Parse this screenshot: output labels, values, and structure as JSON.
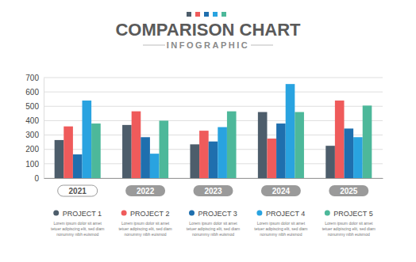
{
  "chart_data": {
    "type": "bar",
    "title": "COMPARISON CHART",
    "subtitle": "INFOGRAPHIC",
    "categories": [
      "2021",
      "2022",
      "2023",
      "2024",
      "2025"
    ],
    "series": [
      {
        "name": "PROJECT 1",
        "color": "#4d5d6b",
        "values": [
          265,
          370,
          235,
          460,
          225
        ],
        "description": [
          "Lorem ipsum dolor sit amet",
          "tetuer adipiscing elit, sed diam",
          "nonummy nibh euismod"
        ]
      },
      {
        "name": "PROJECT 2",
        "color": "#ef5b5b",
        "values": [
          360,
          465,
          330,
          275,
          540
        ],
        "description": [
          "Lorem ipsum dolor sit amet",
          "tetuer adipiscing elit, sed diam",
          "nonummy nibh euismod"
        ]
      },
      {
        "name": "PROJECT 3",
        "color": "#1f6fae",
        "values": [
          165,
          285,
          255,
          380,
          345
        ],
        "description": [
          "Lorem ipsum dolor sit amet",
          "tetuer adipiscing elit, sed diam",
          "nonummy nibh euismod"
        ]
      },
      {
        "name": "PROJECT 4",
        "color": "#29a3e0",
        "values": [
          540,
          170,
          355,
          655,
          285
        ],
        "description": [
          "Lorem ipsum dolor sit amet",
          "tetuer adipiscing elit, sed diam",
          "nonummy nibh euismod"
        ]
      },
      {
        "name": "PROJECT 5",
        "color": "#4db89a",
        "values": [
          380,
          400,
          465,
          460,
          505
        ],
        "description": [
          "Lorem ipsum dolor sit amet",
          "tetuer adipiscing elit, sed diam",
          "nonummy nibh euismod"
        ]
      }
    ],
    "ylim": [
      0,
      700
    ],
    "yticks": [
      0,
      100,
      200,
      300,
      400,
      500,
      600,
      700
    ],
    "grid": true,
    "legend": "bottom"
  }
}
